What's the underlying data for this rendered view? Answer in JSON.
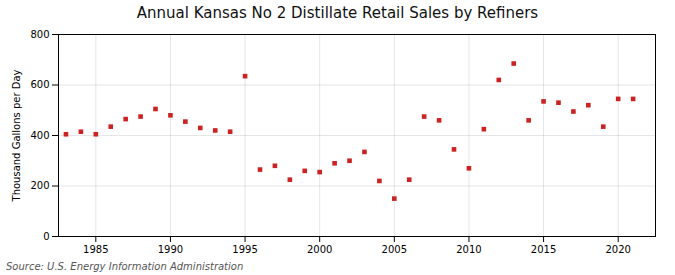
{
  "chart_data": {
    "type": "scatter",
    "title": "Annual Kansas No 2 Distillate Retail Sales by Refiners",
    "ylabel": "Thousand Gallons per Day",
    "source": "Source: U.S. Energy Information Administration",
    "x": [
      1983,
      1984,
      1985,
      1986,
      1987,
      1988,
      1989,
      1990,
      1991,
      1992,
      1993,
      1994,
      1995,
      1996,
      1997,
      1998,
      1999,
      2000,
      2001,
      2002,
      2003,
      2004,
      2005,
      2006,
      2007,
      2008,
      2009,
      2010,
      2011,
      2012,
      2013,
      2014,
      2015,
      2016,
      2017,
      2018,
      2019,
      2020,
      2021
    ],
    "values": [
      405,
      415,
      405,
      435,
      465,
      475,
      505,
      480,
      455,
      430,
      420,
      415,
      635,
      265,
      280,
      225,
      260,
      255,
      290,
      300,
      335,
      220,
      150,
      225,
      475,
      460,
      345,
      270,
      425,
      620,
      685,
      460,
      535,
      530,
      495,
      520,
      435,
      545,
      545
    ],
    "color": "#cc2222",
    "marker": "square",
    "xlim": [
      1982.5,
      2022.5
    ],
    "xticks": [
      1985,
      1990,
      1995,
      2000,
      2005,
      2010,
      2015,
      2020
    ],
    "ylim": [
      0,
      800
    ],
    "yticks": [
      0,
      200,
      400,
      600,
      800
    ],
    "grid": true
  }
}
